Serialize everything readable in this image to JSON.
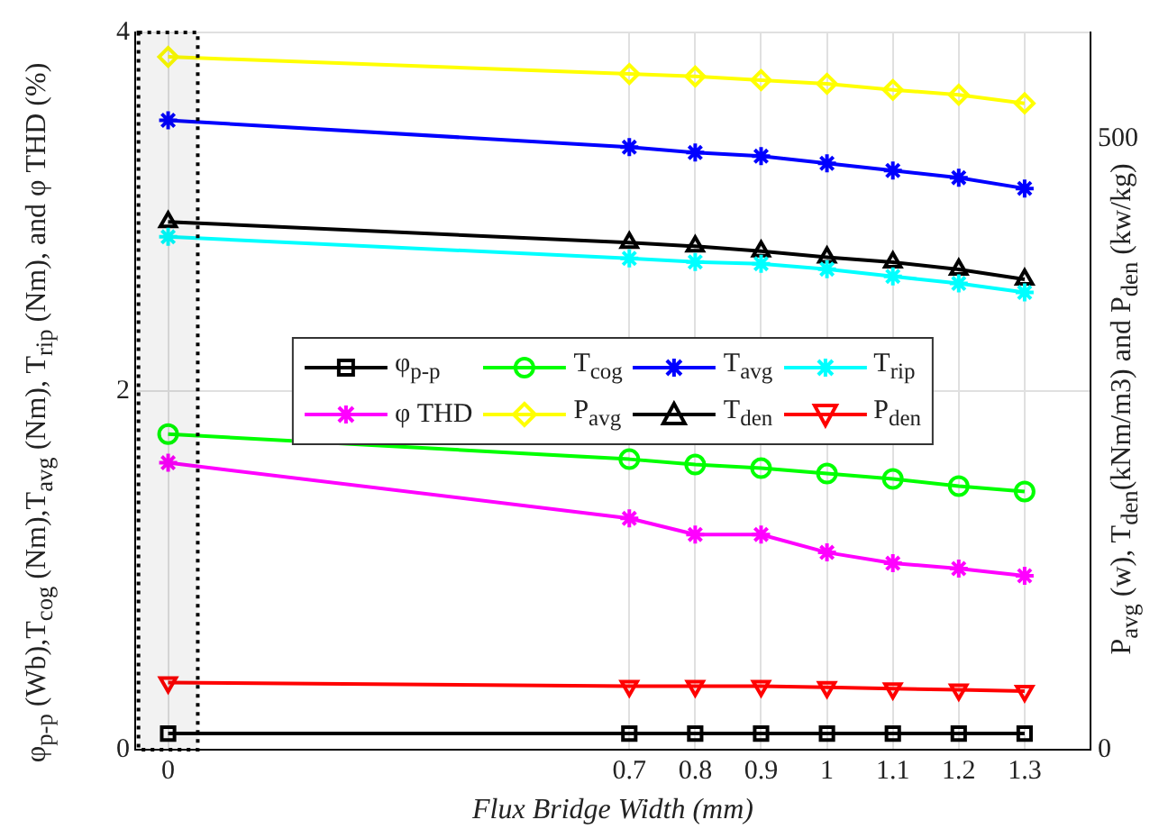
{
  "chart_data": {
    "type": "line",
    "xlabel": "Flux Bridge Width (mm)",
    "ylabel": "φ$_{p-p}$ (Wb),T$_{cog}$ (Nm),T$_{avg}$ (Nm), T$_{rip}$ (Nm), and φ THD (%)",
    "y2label": "P$_{avg}$ (w), T$_{den}$(kNm/m3) and P$_{den}$ (kw/kg)",
    "x": [
      0,
      0.7,
      0.8,
      0.9,
      1,
      1.1,
      1.2,
      1.3
    ],
    "xlim": [
      -0.05,
      1.4
    ],
    "xticks": [
      0,
      0.7,
      0.8,
      0.9,
      1,
      1.1,
      1.2,
      1.3
    ],
    "ylim": [
      0,
      4
    ],
    "yticks": [
      0,
      2,
      4
    ],
    "y2lim": [
      0,
      587
    ],
    "y2ticks": [
      0,
      500
    ],
    "grid": true,
    "legend": "center",
    "bands": [
      {
        "axis": "x",
        "from": -0.045,
        "to": 0.045,
        "color": "#000000"
      }
    ],
    "series": [
      {
        "name": "φ$_{p-p}$",
        "color": "#000000",
        "marker": "square",
        "values": [
          0.09,
          0.09,
          0.09,
          0.09,
          0.09,
          0.09,
          0.09,
          0.09
        ]
      },
      {
        "name": "T$_{cog}$",
        "color": "#00ff00",
        "marker": "circle",
        "values": [
          1.76,
          1.62,
          1.59,
          1.57,
          1.54,
          1.51,
          1.47,
          1.44
        ]
      },
      {
        "name": "T$_{avg}$",
        "color": "#0000ff",
        "marker": "cross",
        "values": [
          3.51,
          3.36,
          3.33,
          3.31,
          3.27,
          3.23,
          3.19,
          3.13
        ]
      },
      {
        "name": "T$_{rip}$",
        "color": "#00ffff",
        "marker": "cross",
        "values": [
          2.86,
          2.74,
          2.72,
          2.71,
          2.68,
          2.64,
          2.6,
          2.55
        ]
      },
      {
        "name": "φ THD",
        "color": "#ff00ff",
        "marker": "cross",
        "values": [
          1.6,
          1.29,
          1.2,
          1.2,
          1.1,
          1.04,
          1.01,
          0.97
        ]
      },
      {
        "name": "P$_{avg}$",
        "color": "#ffff00",
        "marker": "diamond",
        "axis": "y2",
        "values": [
          567,
          553,
          551,
          548,
          545,
          540,
          536,
          529
        ]
      },
      {
        "name": "T$_{den}$",
        "color": "#000000",
        "marker": "triangle",
        "axis": "y2",
        "values": [
          432,
          415,
          412,
          408,
          403,
          399,
          393,
          385
        ]
      },
      {
        "name": "P$_{den}$",
        "color": "#ff0000",
        "marker": "triangle-down",
        "axis": "y2",
        "values": [
          55,
          52,
          52,
          52,
          51,
          50,
          49,
          48
        ]
      }
    ]
  }
}
